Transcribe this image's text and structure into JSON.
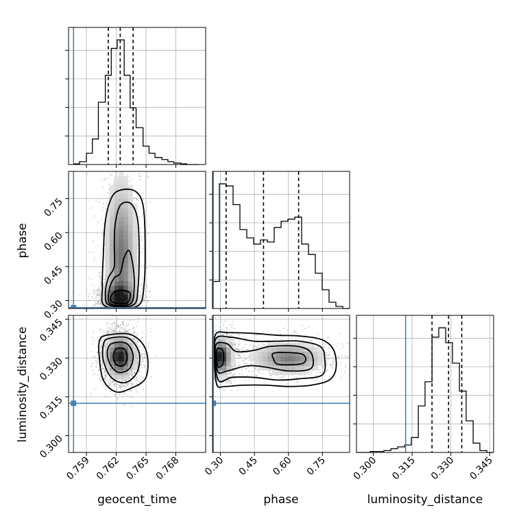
{
  "chart_data": {
    "type": "corner",
    "parameters": [
      "geocent_time",
      "phase",
      "luminosity_distance"
    ],
    "colors": {
      "hist": "#000000",
      "truth": "#4682b4",
      "density": "#000000"
    },
    "ranges": {
      "geocent_time": [
        0.7572,
        0.771
      ],
      "phase": [
        0.265,
        0.87
      ],
      "luminosity_distance": [
        0.2935,
        0.3465
      ]
    },
    "ticks": {
      "geocent_time": [
        "0.759",
        "0.762",
        "0.765",
        "0.768"
      ],
      "phase": [
        "0.30",
        "0.45",
        "0.60",
        "0.75"
      ],
      "luminosity_distance": [
        "0.300",
        "0.315",
        "0.330",
        "0.345"
      ]
    },
    "truths": {
      "geocent_time": 0.7577,
      "phase": 0.2685,
      "luminosity_distance": 0.3125
    },
    "quantiles": {
      "geocent_time": [
        0.7612,
        0.7624,
        0.7637
      ],
      "phase": [
        0.325,
        0.49,
        0.645
      ],
      "luminosity_distance": [
        0.3227,
        0.3291,
        0.3342
      ]
    },
    "histograms": {
      "geocent_time": {
        "edges": [
          0.7577,
          0.7583,
          0.759,
          0.7596,
          0.7602,
          0.7609,
          0.7615,
          0.7621,
          0.7628,
          0.7634,
          0.764,
          0.7647,
          0.7653,
          0.7659,
          0.7666,
          0.7672,
          0.7678,
          0.7685,
          0.7691,
          0.7697,
          0.7703
        ],
        "counts": [
          0.5,
          2,
          8,
          18,
          44,
          63,
          82,
          88,
          63,
          40,
          26,
          13,
          8,
          5,
          3.5,
          2,
          1,
          0.5,
          0,
          0
        ]
      },
      "phase": {
        "edges": [
          0.265,
          0.2952,
          0.3255,
          0.3557,
          0.386,
          0.4162,
          0.4465,
          0.4767,
          0.507,
          0.5372,
          0.5675,
          0.5977,
          0.628,
          0.6582,
          0.6885,
          0.7187,
          0.749,
          0.7792,
          0.8095,
          0.8397,
          0.87
        ],
        "counts": [
          13,
          60,
          59,
          50,
          38,
          34,
          31,
          33,
          32,
          39,
          42,
          43,
          44,
          31,
          26,
          17,
          9,
          3,
          1,
          0
        ]
      },
      "luminosity_distance": {
        "edges": [
          0.2935,
          0.2962,
          0.2988,
          0.3015,
          0.3041,
          0.3068,
          0.3094,
          0.3121,
          0.3147,
          0.3174,
          0.32,
          0.3227,
          0.3253,
          0.328,
          0.3306,
          0.3333,
          0.3359,
          0.3386,
          0.3412,
          0.3439,
          0.3465
        ],
        "counts": [
          0,
          0,
          0.5,
          0.5,
          1,
          2,
          3,
          4,
          8,
          25,
          38,
          62,
          67,
          59,
          48,
          33,
          17,
          5,
          1,
          0
        ]
      }
    },
    "density_2d": [
      {
        "x": "geocent_time",
        "y": "phase",
        "peaks": [
          {
            "x": 0.7623,
            "y": 0.305,
            "sx": 0.0008,
            "sy": 0.04,
            "w": 1.0
          },
          {
            "x": 0.7625,
            "y": 0.5,
            "sx": 0.0008,
            "sy": 0.17,
            "w": 0.6
          }
        ],
        "contours": [
          [
            [
              0.7618,
              0.29
            ],
            [
              0.7631,
              0.29
            ],
            [
              0.7634,
              0.33
            ],
            [
              0.7628,
              0.345
            ],
            [
              0.7619,
              0.34
            ],
            [
              0.7614,
              0.31
            ]
          ],
          [
            [
              0.7614,
              0.285
            ],
            [
              0.7634,
              0.285
            ],
            [
              0.7638,
              0.35
            ],
            [
              0.7637,
              0.45
            ],
            [
              0.7633,
              0.52
            ],
            [
              0.7628,
              0.49
            ],
            [
              0.7624,
              0.42
            ],
            [
              0.7618,
              0.4
            ],
            [
              0.7613,
              0.35
            ]
          ],
          [
            [
              0.7613,
              0.28
            ],
            [
              0.7637,
              0.28
            ],
            [
              0.7642,
              0.36
            ],
            [
              0.7643,
              0.55
            ],
            [
              0.7641,
              0.67
            ],
            [
              0.7634,
              0.73
            ],
            [
              0.7624,
              0.72
            ],
            [
              0.7619,
              0.64
            ],
            [
              0.7618,
              0.55
            ],
            [
              0.7618,
              0.45
            ],
            [
              0.7612,
              0.4
            ],
            [
              0.7609,
              0.33
            ]
          ],
          [
            [
              0.7609,
              0.275
            ],
            [
              0.7641,
              0.275
            ],
            [
              0.7648,
              0.37
            ],
            [
              0.7649,
              0.58
            ],
            [
              0.7647,
              0.72
            ],
            [
              0.764,
              0.78
            ],
            [
              0.7627,
              0.79
            ],
            [
              0.7616,
              0.76
            ],
            [
              0.7609,
              0.65
            ],
            [
              0.7607,
              0.5
            ],
            [
              0.7606,
              0.36
            ]
          ]
        ]
      },
      {
        "x": "geocent_time",
        "y": "luminosity_distance",
        "peaks": [
          {
            "x": 0.7624,
            "y": 0.3305,
            "sx": 0.00075,
            "sy": 0.004,
            "w": 1.0
          }
        ],
        "contours": [
          [
            [
              0.762,
              0.3335
            ],
            [
              0.7628,
              0.3335
            ],
            [
              0.7631,
              0.33
            ],
            [
              0.7627,
              0.327
            ],
            [
              0.762,
              0.3275
            ],
            [
              0.7617,
              0.3305
            ]
          ],
          [
            [
              0.7615,
              0.3355
            ],
            [
              0.763,
              0.3357
            ],
            [
              0.7637,
              0.331
            ],
            [
              0.7633,
              0.3258
            ],
            [
              0.7622,
              0.3245
            ],
            [
              0.7614,
              0.3275
            ],
            [
              0.7611,
              0.332
            ]
          ],
          [
            [
              0.7612,
              0.3375
            ],
            [
              0.7632,
              0.3377
            ],
            [
              0.7643,
              0.332
            ],
            [
              0.7641,
              0.3245
            ],
            [
              0.7629,
              0.3205
            ],
            [
              0.7615,
              0.3225
            ],
            [
              0.7607,
              0.329
            ],
            [
              0.7607,
              0.335
            ]
          ],
          [
            [
              0.761,
              0.3388
            ],
            [
              0.7635,
              0.339
            ],
            [
              0.765,
              0.333
            ],
            [
              0.765,
              0.3225
            ],
            [
              0.7633,
              0.318
            ],
            [
              0.7619,
              0.317
            ],
            [
              0.7607,
              0.3215
            ],
            [
              0.7603,
              0.33
            ],
            [
              0.7603,
              0.3365
            ]
          ]
        ]
      },
      {
        "x": "phase",
        "y": "luminosity_distance",
        "peaks": [
          {
            "x": 0.3,
            "y": 0.3305,
            "sx": 0.025,
            "sy": 0.0035,
            "w": 1.0
          },
          {
            "x": 0.6,
            "y": 0.33,
            "sx": 0.08,
            "sy": 0.003,
            "w": 0.55
          }
        ],
        "contours": [
          [
            [
              0.285,
              0.3335
            ],
            [
              0.31,
              0.333
            ],
            [
              0.312,
              0.328
            ],
            [
              0.29,
              0.3265
            ],
            [
              0.283,
              0.33
            ]
          ],
          [
            [
              0.54,
              0.332
            ],
            [
              0.66,
              0.3315
            ],
            [
              0.665,
              0.328
            ],
            [
              0.56,
              0.3275
            ],
            [
              0.535,
              0.3295
            ]
          ],
          [
            [
              0.282,
              0.3355
            ],
            [
              0.33,
              0.3355
            ],
            [
              0.37,
              0.3325
            ],
            [
              0.45,
              0.333
            ],
            [
              0.52,
              0.3345
            ],
            [
              0.64,
              0.3345
            ],
            [
              0.7,
              0.332
            ],
            [
              0.7,
              0.326
            ],
            [
              0.6,
              0.325
            ],
            [
              0.5,
              0.3265
            ],
            [
              0.42,
              0.327
            ],
            [
              0.33,
              0.325
            ],
            [
              0.29,
              0.3245
            ],
            [
              0.279,
              0.33
            ]
          ],
          [
            [
              0.28,
              0.3375
            ],
            [
              0.35,
              0.338
            ],
            [
              0.45,
              0.3365
            ],
            [
              0.55,
              0.3365
            ],
            [
              0.65,
              0.3365
            ],
            [
              0.74,
              0.3345
            ],
            [
              0.76,
              0.33
            ],
            [
              0.75,
              0.3235
            ],
            [
              0.65,
              0.322
            ],
            [
              0.55,
              0.3215
            ],
            [
              0.45,
              0.3225
            ],
            [
              0.35,
              0.3225
            ],
            [
              0.295,
              0.321
            ],
            [
              0.276,
              0.328
            ]
          ],
          [
            [
              0.278,
              0.339
            ],
            [
              0.34,
              0.3398
            ],
            [
              0.45,
              0.3395
            ],
            [
              0.55,
              0.3388
            ],
            [
              0.65,
              0.3385
            ],
            [
              0.75,
              0.337
            ],
            [
              0.8,
              0.333
            ],
            [
              0.81,
              0.326
            ],
            [
              0.78,
              0.3215
            ],
            [
              0.7,
              0.3195
            ],
            [
              0.6,
              0.319
            ],
            [
              0.5,
              0.3195
            ],
            [
              0.4,
              0.3195
            ],
            [
              0.32,
              0.319
            ],
            [
              0.285,
              0.3195
            ],
            [
              0.274,
              0.328
            ]
          ]
        ]
      }
    ]
  }
}
